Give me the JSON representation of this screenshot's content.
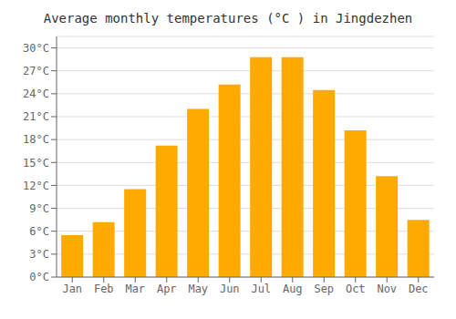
{
  "chart_data": {
    "type": "bar",
    "title": "Average monthly temperatures (°C ) in Jingdezhen",
    "categories": [
      "Jan",
      "Feb",
      "Mar",
      "Apr",
      "May",
      "Jun",
      "Jul",
      "Aug",
      "Sep",
      "Oct",
      "Nov",
      "Dec"
    ],
    "values": [
      5.5,
      7.2,
      11.5,
      17.2,
      22.0,
      25.2,
      28.8,
      28.8,
      24.5,
      19.2,
      13.2,
      7.5
    ],
    "color": "#FFAA00",
    "ylim": [
      0,
      31.5
    ],
    "yticks": [
      {
        "value": 0,
        "label": "0°C"
      },
      {
        "value": 3,
        "label": "3°C"
      },
      {
        "value": 6,
        "label": "6°C"
      },
      {
        "value": 9,
        "label": "9°C"
      },
      {
        "value": 12,
        "label": "12°C"
      },
      {
        "value": 15,
        "label": "15°C"
      },
      {
        "value": 18,
        "label": "18°C"
      },
      {
        "value": 21,
        "label": "21°C"
      },
      {
        "value": 24,
        "label": "24°C"
      },
      {
        "value": 27,
        "label": "27°C"
      },
      {
        "value": 30,
        "label": "30°C"
      }
    ],
    "grid": true
  }
}
